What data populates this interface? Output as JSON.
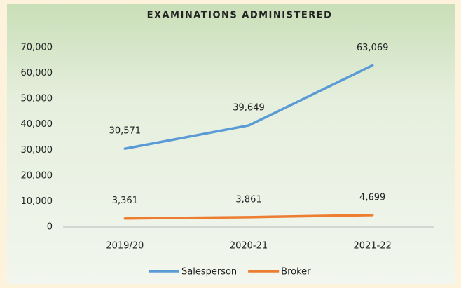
{
  "chart_data": {
    "type": "line",
    "title": "EXAMINATIONS ADMINISTERED",
    "categories": [
      "2019/20",
      "2020-21",
      "2021-22"
    ],
    "series": [
      {
        "name": "Salesperson",
        "color": "#5b9bd5",
        "values": [
          30571,
          39649,
          63069
        ],
        "value_labels": [
          "30,571",
          "39,649",
          "63,069"
        ]
      },
      {
        "name": "Broker",
        "color": "#ed7d31",
        "values": [
          3361,
          3861,
          4699
        ],
        "value_labels": [
          "3,361",
          "3,861",
          "4,699"
        ]
      }
    ],
    "ylim": [
      0,
      70000
    ],
    "yticks": [
      {
        "value": 0,
        "label": "0"
      },
      {
        "value": 10000,
        "label": "10,000"
      },
      {
        "value": 20000,
        "label": "20,000"
      },
      {
        "value": 30000,
        "label": "30,000"
      },
      {
        "value": 40000,
        "label": "40,000"
      },
      {
        "value": 50000,
        "label": "50,000"
      },
      {
        "value": 60000,
        "label": "60,000"
      },
      {
        "value": 70000,
        "label": "70,000"
      }
    ],
    "grid": false,
    "legend": "bottom"
  }
}
